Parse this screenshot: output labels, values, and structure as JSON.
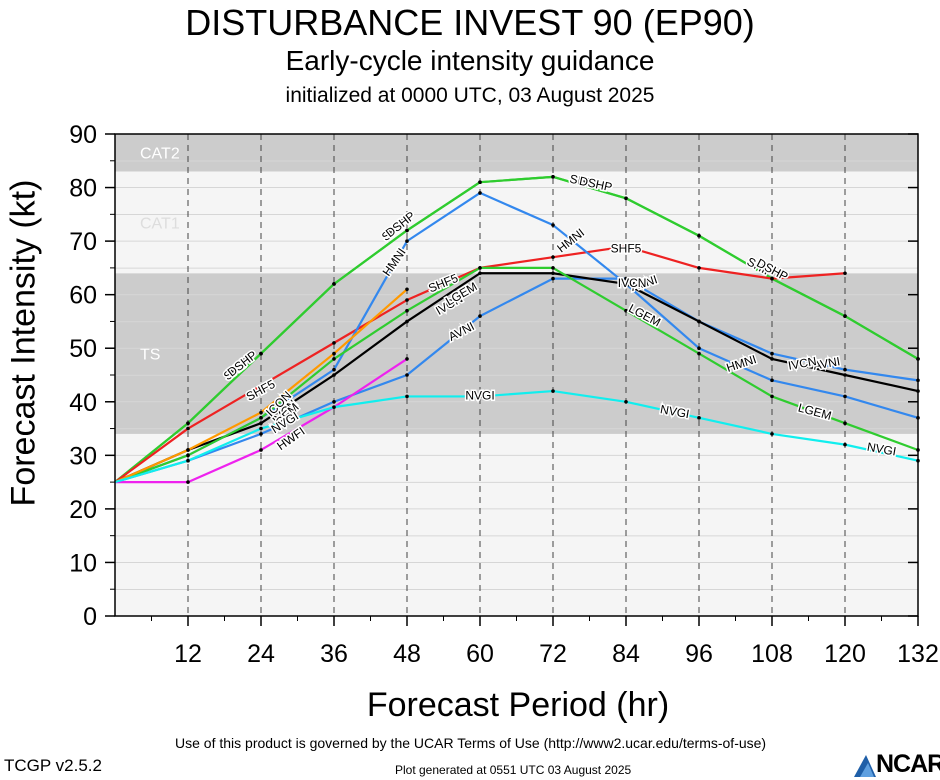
{
  "title": "DISTURBANCE INVEST 90 (EP90)",
  "subtitle": "Early-cycle intensity guidance",
  "initialized": "initialized at 0000 UTC, 03 August 2025",
  "footer": {
    "terms": "Use of this product is governed by the UCAR Terms of Use (http://www2.ucar.edu/terms-of-use)",
    "generated": "Plot generated at 0551 UTC   03 August 2025",
    "version": "TCGP v2.5.2",
    "logo": "NCAR"
  },
  "chart_data": {
    "type": "line",
    "title": "DISTURBANCE INVEST 90 (EP90)",
    "xlabel": "Forecast Period (hr)",
    "ylabel": "Forecast Intensity (kt)",
    "xlim": [
      0,
      132
    ],
    "ylim": [
      0,
      90
    ],
    "xticks": [
      12,
      24,
      36,
      48,
      60,
      72,
      84,
      96,
      108,
      120,
      132
    ],
    "yticks": [
      0,
      10,
      20,
      30,
      40,
      50,
      60,
      70,
      80,
      90
    ],
    "grid": true,
    "bands": [
      {
        "name": "TS",
        "from": 34,
        "to": 64,
        "color": "#cccccc"
      },
      {
        "name": "CAT1",
        "from": 64,
        "to": 83,
        "color": "#f5f5f5"
      },
      {
        "name": "CAT2",
        "from": 83,
        "to": 90,
        "color": "#cccccc"
      }
    ],
    "series": [
      {
        "name": "SHIP",
        "color": "#2fcc2f",
        "x": [
          0,
          12,
          24,
          36,
          48,
          60,
          72,
          84,
          96,
          108,
          120,
          132
        ],
        "y": [
          25,
          36,
          49,
          62,
          72,
          81,
          82,
          78,
          71,
          63,
          56,
          48
        ],
        "labels": [
          {
            "x": 20,
            "y": 46,
            "angle": -38
          },
          {
            "x": 46,
            "y": 72,
            "angle": -38
          },
          {
            "x": 77,
            "y": 81,
            "angle": 12
          },
          {
            "x": 106,
            "y": 65,
            "angle": 28
          }
        ]
      },
      {
        "name": "DSHP",
        "color": "#2fcc2f",
        "x": [
          0,
          12,
          24,
          36,
          48,
          60,
          72,
          84,
          96,
          108,
          120,
          132
        ],
        "y": [
          25,
          36,
          49,
          62,
          72,
          81,
          82,
          78,
          71,
          63,
          56,
          48
        ],
        "labels": [
          {
            "x": 21,
            "y": 47,
            "angle": -38
          },
          {
            "x": 47,
            "y": 73,
            "angle": -38
          },
          {
            "x": 79,
            "y": 80.5,
            "angle": 12
          },
          {
            "x": 108,
            "y": 64.5,
            "angle": 28
          }
        ]
      },
      {
        "name": "SHF5",
        "color": "#ee2222",
        "x": [
          0,
          12,
          24,
          36,
          48,
          60,
          72,
          84,
          96,
          108,
          120
        ],
        "y": [
          25,
          35,
          43,
          51,
          59,
          65,
          67,
          69,
          65,
          63,
          64
        ],
        "labels": [
          {
            "x": 24,
            "y": 42,
            "angle": -28
          },
          {
            "x": 54,
            "y": 62,
            "angle": -22
          },
          {
            "x": 84,
            "y": 68.5,
            "angle": 0
          }
        ]
      },
      {
        "name": "HMNI",
        "color": "#3388ee",
        "x": [
          0,
          12,
          24,
          36,
          48,
          60,
          72,
          84,
          96,
          108,
          120,
          132
        ],
        "y": [
          25,
          30,
          37,
          46,
          70,
          79,
          73,
          62,
          50,
          44,
          41,
          37
        ],
        "labels": [
          {
            "x": 46,
            "y": 66,
            "angle": -55
          },
          {
            "x": 75,
            "y": 70,
            "angle": -38
          },
          {
            "x": 103,
            "y": 47,
            "angle": -18
          }
        ]
      },
      {
        "name": "AVNI",
        "color": "#3388ee",
        "x": [
          0,
          12,
          24,
          36,
          48,
          60,
          72,
          84,
          96,
          108,
          120,
          132
        ],
        "y": [
          25,
          29,
          34,
          40,
          45,
          56,
          63,
          63,
          55,
          49,
          46,
          44
        ],
        "labels": [
          {
            "x": 57,
            "y": 53,
            "angle": -27
          },
          {
            "x": 87,
            "y": 62,
            "angle": -18
          },
          {
            "x": 117,
            "y": 47,
            "angle": -10
          }
        ]
      },
      {
        "name": "IVCN",
        "color": "#000000",
        "x": [
          0,
          12,
          24,
          36,
          48,
          60,
          72,
          84,
          96,
          108,
          120,
          132
        ],
        "y": [
          25,
          31,
          36,
          45,
          55,
          64,
          64,
          62,
          55,
          48,
          45,
          42
        ],
        "labels": [
          {
            "x": 28,
            "y": 38,
            "angle": -45
          },
          {
            "x": 55,
            "y": 58,
            "angle": -30
          },
          {
            "x": 85,
            "y": 62,
            "angle": 0
          },
          {
            "x": 113,
            "y": 47,
            "angle": -10
          }
        ]
      },
      {
        "name": "LGEM",
        "color": "#2fcc2f",
        "x": [
          0,
          12,
          24,
          36,
          48,
          60,
          72,
          84,
          96,
          108,
          120,
          132
        ],
        "y": [
          25,
          30,
          37,
          48,
          57,
          65,
          65,
          57,
          49,
          41,
          36,
          31
        ],
        "labels": [
          {
            "x": 28,
            "y": 37,
            "angle": -45
          },
          {
            "x": 57,
            "y": 60,
            "angle": -30
          },
          {
            "x": 87,
            "y": 56,
            "angle": 28
          },
          {
            "x": 115,
            "y": 38,
            "angle": 15
          }
        ]
      },
      {
        "name": "ICON",
        "color": "#ff9900",
        "x": [
          0,
          12,
          24,
          36,
          48
        ],
        "y": [
          25,
          31,
          38,
          49,
          61
        ],
        "labels": [
          {
            "x": 27,
            "y": 39.5,
            "angle": -45
          }
        ]
      },
      {
        "name": "HWFI",
        "color": "#ee22ee",
        "x": [
          0,
          12,
          24,
          36,
          48
        ],
        "y": [
          25,
          25,
          31,
          39,
          48
        ],
        "labels": [
          {
            "x": 29,
            "y": 33,
            "angle": -35
          }
        ]
      },
      {
        "name": "NVGI",
        "color": "#11eeee",
        "x": [
          0,
          12,
          24,
          36,
          48,
          60,
          72,
          84,
          96,
          108,
          120,
          132
        ],
        "y": [
          25,
          29,
          35,
          39,
          41,
          41,
          42,
          40,
          37,
          34,
          32,
          29
        ],
        "labels": [
          {
            "x": 28,
            "y": 36,
            "angle": -32
          },
          {
            "x": 60,
            "y": 41,
            "angle": 0
          },
          {
            "x": 92,
            "y": 38,
            "angle": 10
          },
          {
            "x": 126,
            "y": 31,
            "angle": 10
          }
        ]
      }
    ]
  }
}
